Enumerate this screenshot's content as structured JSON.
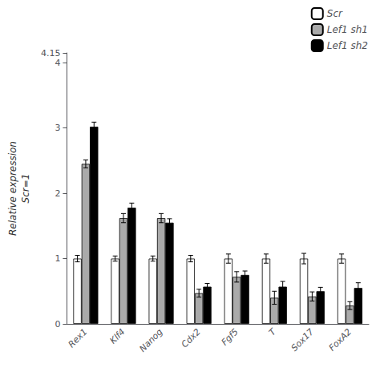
{
  "chart_data": {
    "type": "bar",
    "categories": [
      "Rex1",
      "Klf4",
      "Nanog",
      "Cdx2",
      "Fgf5",
      "T",
      "Sox17",
      "FoxA2"
    ],
    "series": [
      {
        "name": "Scr",
        "color": "#ffffff",
        "values": [
          1.0,
          1.0,
          1.0,
          1.0,
          1.0,
          1.0,
          1.0,
          1.0
        ],
        "errors": [
          0.05,
          0.04,
          0.04,
          0.05,
          0.07,
          0.07,
          0.08,
          0.07
        ]
      },
      {
        "name": "Lef1 sh1",
        "color": "#aaaaaa",
        "values": [
          2.45,
          1.62,
          1.62,
          0.47,
          0.72,
          0.4,
          0.42,
          0.28
        ],
        "errors": [
          0.06,
          0.07,
          0.07,
          0.06,
          0.08,
          0.1,
          0.07,
          0.06
        ]
      },
      {
        "name": "Lef1 sh2",
        "color": "#000000",
        "values": [
          3.02,
          1.78,
          1.55,
          0.57,
          0.75,
          0.57,
          0.5,
          0.55
        ],
        "errors": [
          0.07,
          0.07,
          0.06,
          0.05,
          0.06,
          0.08,
          0.06,
          0.08
        ]
      }
    ],
    "ylabel": "Relative expression\nScr=1",
    "ylim": [
      0,
      4.15
    ],
    "yticks": [
      0,
      1,
      2,
      3,
      4
    ],
    "grid": false,
    "legend": "upper right"
  }
}
